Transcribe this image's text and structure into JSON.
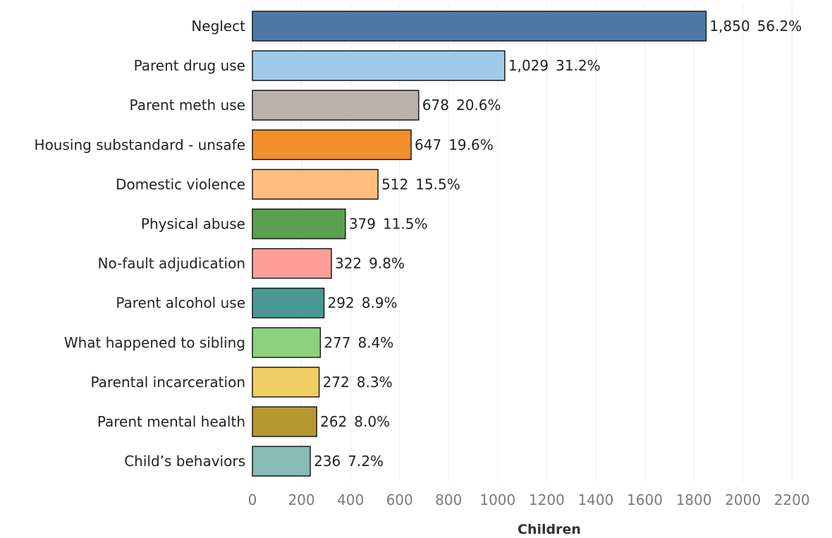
{
  "chart_data": {
    "type": "bar",
    "orientation": "horizontal",
    "categories": [
      "Neglect",
      "Parent drug use",
      "Parent meth use",
      "Housing substandard - unsafe",
      "Domestic violence",
      "Physical abuse",
      "No-fault adjudication",
      "Parent alcohol use",
      "What happened to sibling",
      "Parental incarceration",
      "Parent mental health",
      "Child’s behaviors"
    ],
    "values": [
      1850,
      1029,
      678,
      647,
      512,
      379,
      322,
      292,
      277,
      272,
      262,
      236
    ],
    "value_labels": [
      "1,850",
      "1,029",
      "678",
      "647",
      "512",
      "379",
      "322",
      "292",
      "277",
      "272",
      "262",
      "236"
    ],
    "percent_labels": [
      "56.2%",
      "31.2%",
      "20.6%",
      "19.6%",
      "15.5%",
      "11.5%",
      "9.8%",
      "8.9%",
      "8.4%",
      "8.3%",
      "8.0%",
      "7.2%"
    ],
    "colors": [
      "#4e79a7",
      "#a0cbe8",
      "#bab0ac",
      "#f28e2b",
      "#ffbe7d",
      "#59a14f",
      "#ff9d9a",
      "#499894",
      "#8cd17d",
      "#f1ce63",
      "#b6992d",
      "#86bcb6"
    ],
    "xlabel": "Children",
    "ylabel": "",
    "xlim": [
      0,
      2300
    ],
    "x_ticks": [
      0,
      200,
      400,
      600,
      800,
      1000,
      1200,
      1400,
      1600,
      1800,
      2000,
      2200
    ],
    "grid": true,
    "legend": "none"
  }
}
